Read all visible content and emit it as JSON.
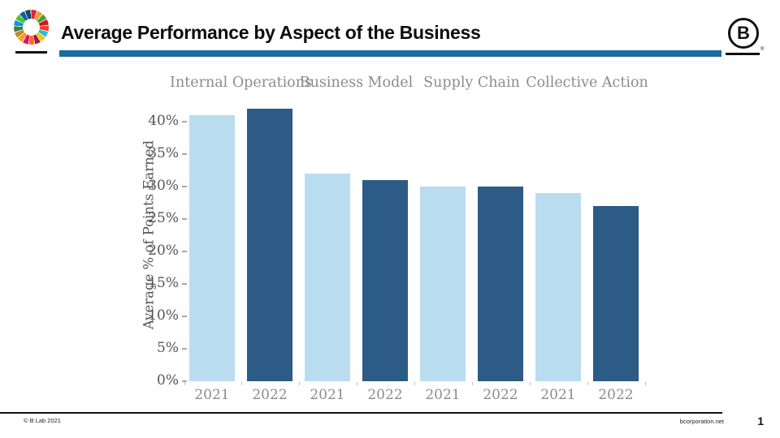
{
  "header": {
    "title": "Average Performance by Aspect of the Business",
    "accent_rule_color": "#1b6b9e",
    "sdg_logo_colors": [
      "#E5243B",
      "#DDA63A",
      "#4C9F38",
      "#C5192D",
      "#FF3A21",
      "#26BDE2",
      "#FCC30B",
      "#A21942",
      "#FD6925",
      "#DD1367",
      "#FD9D24",
      "#BF8B2E",
      "#3F7E44",
      "#0A97D9",
      "#56C02B",
      "#00689D",
      "#19486A"
    ],
    "bcorp_logo_letter": "B",
    "bcorp_registered_mark": "®"
  },
  "chart_data": {
    "type": "bar",
    "title": "Average Performance by Aspect of the Business",
    "ylabel": "Average % of Points Earned",
    "xlabel": "",
    "ylim": [
      0,
      45
    ],
    "ytick_step": 5,
    "yticks_labels": [
      "0%",
      "5%",
      "10%",
      "15%",
      "20%",
      "25%",
      "30%",
      "35%",
      "40%"
    ],
    "categories": [
      "Internal Operations",
      "Business Model",
      "Supply Chain",
      "Collective Action"
    ],
    "x_years": [
      "2021",
      "2022"
    ],
    "series": [
      {
        "name": "2021",
        "color": "#b9ddee",
        "values": [
          41,
          32,
          30,
          29
        ]
      },
      {
        "name": "2022",
        "color": "#2c5b85",
        "values": [
          42,
          31,
          30,
          27
        ]
      }
    ],
    "grid": false,
    "legend_position": "none"
  },
  "footer": {
    "copyright": "© B Lab 2021",
    "website": "bcorporation.net",
    "page_number": "1"
  }
}
